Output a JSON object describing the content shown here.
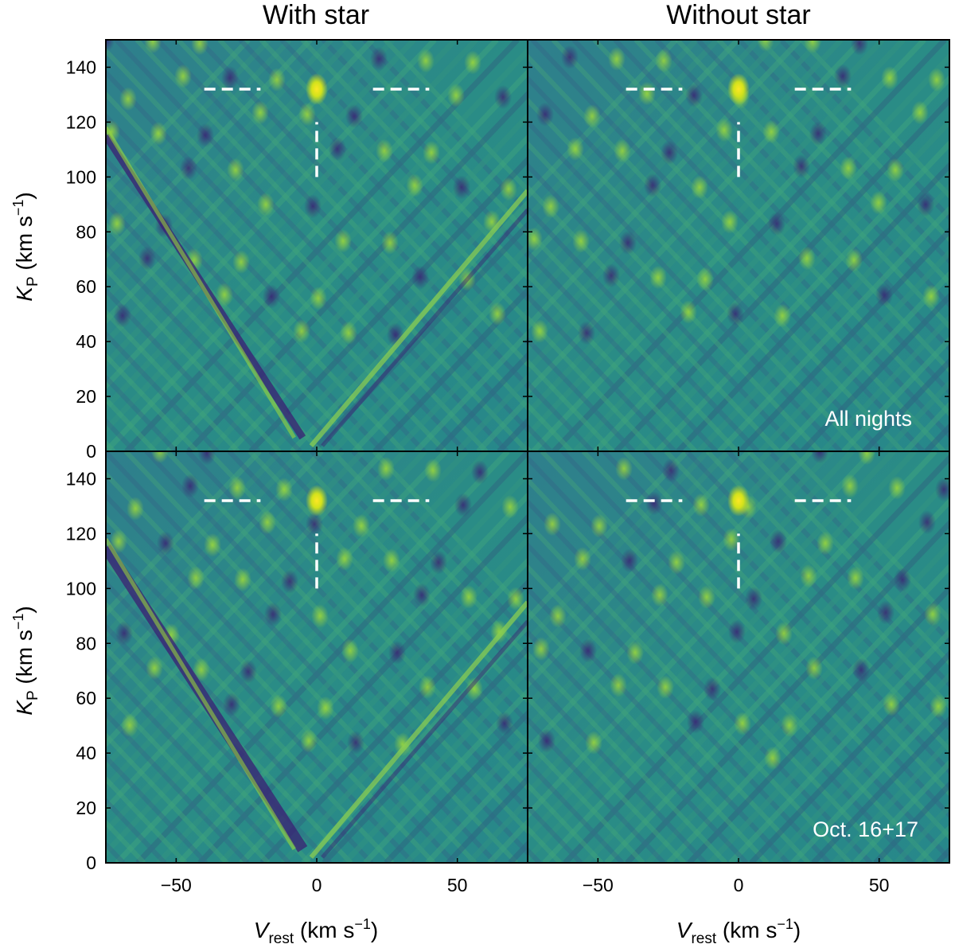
{
  "chart_data": {
    "type": "heatmap",
    "col_titles": [
      "With star",
      "Without star"
    ],
    "row_labels": [
      "All nights",
      "Oct. 16+17"
    ],
    "xlabel": {
      "main": "V",
      "sub": "rest",
      "unit": " (km s",
      "sup": "−1",
      "close": ")"
    },
    "ylabel": {
      "main": "K",
      "sub": "P",
      "unit": " (km s",
      "sup": "−1",
      "close": ")"
    },
    "xlim": [
      -75,
      75
    ],
    "ylim": [
      0,
      150
    ],
    "xticks": [
      -50,
      0,
      50
    ],
    "xtick_labels": [
      "−50",
      "0",
      "50"
    ],
    "yticks": [
      0,
      20,
      40,
      60,
      80,
      100,
      120,
      140
    ],
    "ytick_labels": [
      "0",
      "20",
      "40",
      "60",
      "80",
      "100",
      "120",
      "140"
    ],
    "colormap": "viridis",
    "peak": {
      "x": 0,
      "y": 132
    },
    "marker_lines": [
      {
        "x": [
          -40,
          -20
        ],
        "y": [
          132,
          132
        ]
      },
      {
        "x": [
          20,
          40
        ],
        "y": [
          132,
          132
        ]
      },
      {
        "x": [
          0,
          0
        ],
        "y": [
          100,
          120
        ]
      }
    ],
    "panels": [
      {
        "id": "with-star-all-nights",
        "column": "With star",
        "row_label": "",
        "star_residual": true
      },
      {
        "id": "without-star-all-nights",
        "column": "Without star",
        "row_label": "All nights",
        "star_residual": false
      },
      {
        "id": "with-star-oct",
        "column": "With star",
        "row_label": "",
        "star_residual": true
      },
      {
        "id": "without-star-oct",
        "column": "Without star",
        "row_label": "Oct. 16+17",
        "star_residual": false
      }
    ],
    "grid": false
  },
  "colors": {
    "background_mid": "#2a8a86",
    "marker": "#ffffff",
    "frame": "#000000"
  }
}
